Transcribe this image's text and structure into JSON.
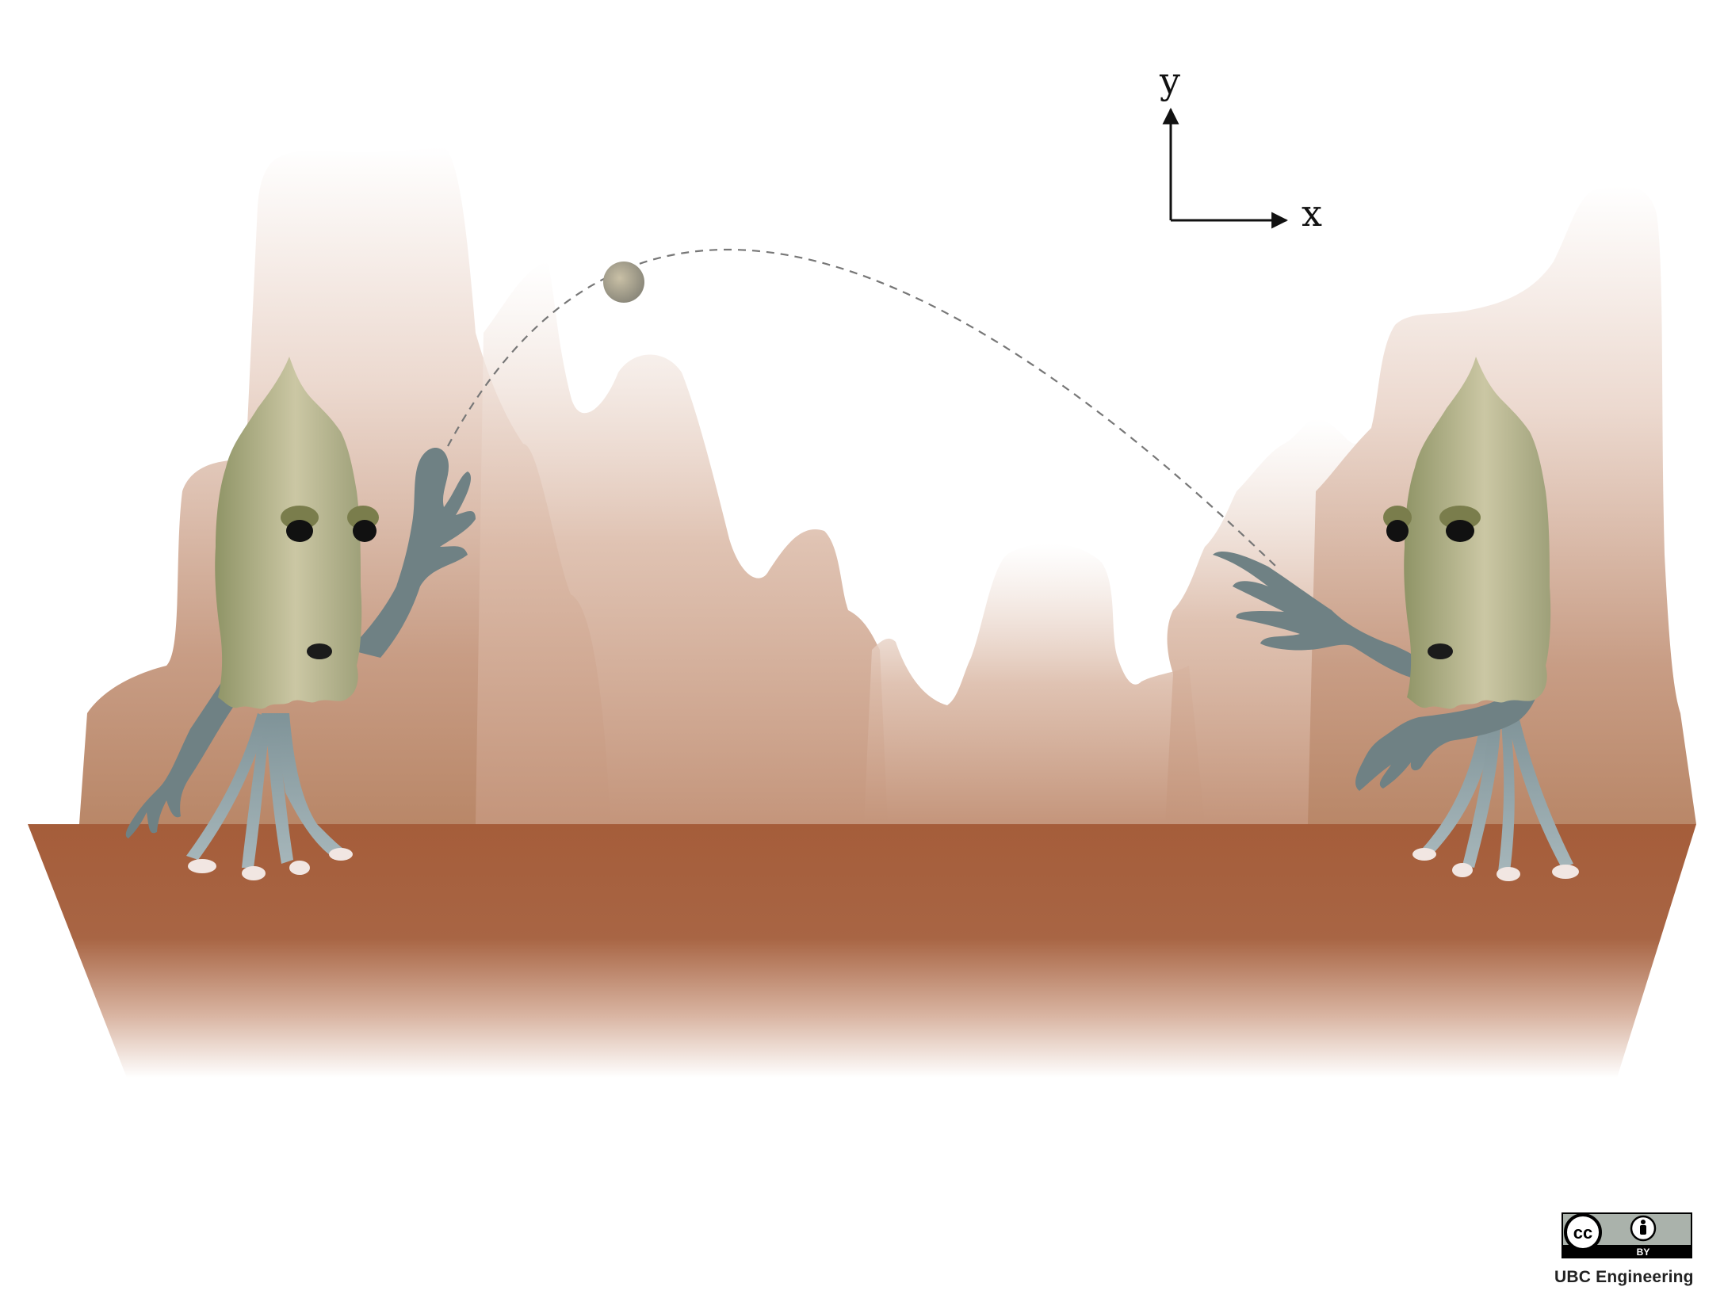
{
  "axes": {
    "x_label": "x",
    "y_label": "y"
  },
  "license": {
    "cc_text": "cc",
    "by_text": "BY"
  },
  "credit": "UBC Engineering",
  "colors": {
    "ground": "#a55f3b",
    "cliffs": "#c49a82",
    "alien_head": "#b8b892",
    "alien_limbs": "#6f8184",
    "ball": "#9e9a88",
    "trajectory": "#777777"
  },
  "icons": [
    "creative-commons-icon",
    "attribution-person-icon"
  ]
}
